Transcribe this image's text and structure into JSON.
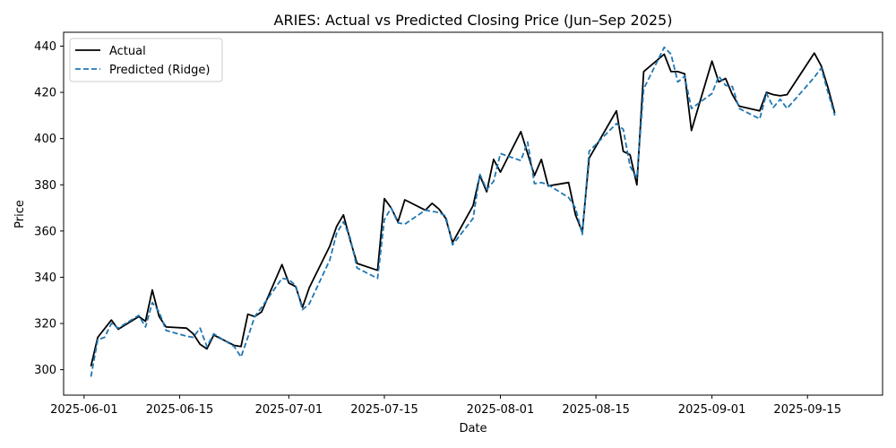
{
  "chart_data": {
    "type": "line",
    "title": "ARIES: Actual vs Predicted Closing Price (Jun–Sep 2025)",
    "xlabel": "Date",
    "ylabel": "Price",
    "xlim": [
      "2025-05-29",
      "2025-09-26"
    ],
    "ylim": [
      289,
      446
    ],
    "x_ticks": [
      "2025-06-01",
      "2025-06-15",
      "2025-07-01",
      "2025-07-15",
      "2025-08-01",
      "2025-08-15",
      "2025-09-01",
      "2025-09-15"
    ],
    "y_ticks": [
      300,
      320,
      340,
      360,
      380,
      400,
      420,
      440
    ],
    "grid": false,
    "legend_position": "top-left",
    "colors": {
      "actual": "#000000",
      "predicted": "#1f77b4"
    },
    "series": [
      {
        "name": "Actual",
        "style": "solid",
        "points": [
          [
            "2025-06-02",
            301.5
          ],
          [
            "2025-06-03",
            314
          ],
          [
            "2025-06-05",
            321.5
          ],
          [
            "2025-06-06",
            317.5
          ],
          [
            "2025-06-09",
            323
          ],
          [
            "2025-06-10",
            321
          ],
          [
            "2025-06-11",
            334.5
          ],
          [
            "2025-06-12",
            323
          ],
          [
            "2025-06-13",
            318.5
          ],
          [
            "2025-06-16",
            318
          ],
          [
            "2025-06-17",
            315.5
          ],
          [
            "2025-06-18",
            311
          ],
          [
            "2025-06-19",
            309
          ],
          [
            "2025-06-20",
            315
          ],
          [
            "2025-06-23",
            310.5
          ],
          [
            "2025-06-24",
            310
          ],
          [
            "2025-06-25",
            324
          ],
          [
            "2025-06-26",
            323
          ],
          [
            "2025-06-27",
            325
          ],
          [
            "2025-06-30",
            345.5
          ],
          [
            "2025-07-01",
            337.5
          ],
          [
            "2025-07-02",
            336
          ],
          [
            "2025-07-03",
            327
          ],
          [
            "2025-07-04",
            335.5
          ],
          [
            "2025-07-07",
            353.5
          ],
          [
            "2025-07-08",
            362
          ],
          [
            "2025-07-09",
            367
          ],
          [
            "2025-07-10",
            356
          ],
          [
            "2025-07-11",
            346
          ],
          [
            "2025-07-14",
            343
          ],
          [
            "2025-07-15",
            374
          ],
          [
            "2025-07-16",
            370
          ],
          [
            "2025-07-17",
            364
          ],
          [
            "2025-07-18",
            373.5
          ],
          [
            "2025-07-21",
            369
          ],
          [
            "2025-07-22",
            372
          ],
          [
            "2025-07-23",
            369.5
          ],
          [
            "2025-07-24",
            365.5
          ],
          [
            "2025-07-25",
            355
          ],
          [
            "2025-07-28",
            371
          ],
          [
            "2025-07-29",
            384
          ],
          [
            "2025-07-30",
            377
          ],
          [
            "2025-07-31",
            391
          ],
          [
            "2025-08-01",
            385.5
          ],
          [
            "2025-08-04",
            403
          ],
          [
            "2025-08-05",
            393.5
          ],
          [
            "2025-08-06",
            384
          ],
          [
            "2025-08-07",
            391
          ],
          [
            "2025-08-08",
            379.5
          ],
          [
            "2025-08-11",
            381
          ],
          [
            "2025-08-12",
            367
          ],
          [
            "2025-08-13",
            359.5
          ],
          [
            "2025-08-14",
            391.5
          ],
          [
            "2025-08-18",
            412
          ],
          [
            "2025-08-19",
            394.5
          ],
          [
            "2025-08-20",
            393
          ],
          [
            "2025-08-21",
            380
          ],
          [
            "2025-08-22",
            429
          ],
          [
            "2025-08-25",
            436.5
          ],
          [
            "2025-08-26",
            429
          ],
          [
            "2025-08-27",
            429
          ],
          [
            "2025-08-28",
            428
          ],
          [
            "2025-08-29",
            403.5
          ],
          [
            "2025-09-01",
            433.5
          ],
          [
            "2025-09-02",
            424.5
          ],
          [
            "2025-09-03",
            426
          ],
          [
            "2025-09-04",
            419
          ],
          [
            "2025-09-05",
            414
          ],
          [
            "2025-09-08",
            412
          ],
          [
            "2025-09-09",
            420
          ],
          [
            "2025-09-10",
            419
          ],
          [
            "2025-09-11",
            418.5
          ],
          [
            "2025-09-12",
            419
          ],
          [
            "2025-09-16",
            437
          ],
          [
            "2025-09-17",
            431.5
          ],
          [
            "2025-09-18",
            422
          ],
          [
            "2025-09-19",
            411
          ]
        ]
      },
      {
        "name": "Predicted (Ridge)",
        "style": "dashed",
        "points": [
          [
            "2025-06-02",
            297
          ],
          [
            "2025-06-03",
            313
          ],
          [
            "2025-06-04",
            314
          ],
          [
            "2025-06-05",
            320
          ],
          [
            "2025-06-06",
            318
          ],
          [
            "2025-06-09",
            323.5
          ],
          [
            "2025-06-10",
            318.5
          ],
          [
            "2025-06-11",
            329
          ],
          [
            "2025-06-12",
            325
          ],
          [
            "2025-06-13",
            317
          ],
          [
            "2025-06-16",
            314.5
          ],
          [
            "2025-06-17",
            314
          ],
          [
            "2025-06-18",
            318
          ],
          [
            "2025-06-19",
            310
          ],
          [
            "2025-06-20",
            315.5
          ],
          [
            "2025-06-23",
            310
          ],
          [
            "2025-06-24",
            305.5
          ],
          [
            "2025-06-25",
            314
          ],
          [
            "2025-06-26",
            323
          ],
          [
            "2025-06-27",
            327
          ],
          [
            "2025-06-30",
            339.5
          ],
          [
            "2025-07-01",
            339
          ],
          [
            "2025-07-02",
            336.5
          ],
          [
            "2025-07-03",
            326
          ],
          [
            "2025-07-04",
            328.5
          ],
          [
            "2025-07-07",
            347.5
          ],
          [
            "2025-07-08",
            359
          ],
          [
            "2025-07-09",
            364
          ],
          [
            "2025-07-10",
            357
          ],
          [
            "2025-07-11",
            344
          ],
          [
            "2025-07-14",
            339.5
          ],
          [
            "2025-07-15",
            365
          ],
          [
            "2025-07-16",
            370
          ],
          [
            "2025-07-17",
            363.5
          ],
          [
            "2025-07-18",
            363
          ],
          [
            "2025-07-21",
            369
          ],
          [
            "2025-07-22",
            368.5
          ],
          [
            "2025-07-23",
            368
          ],
          [
            "2025-07-24",
            366.5
          ],
          [
            "2025-07-25",
            354
          ],
          [
            "2025-07-28",
            365.5
          ],
          [
            "2025-07-29",
            384.5
          ],
          [
            "2025-07-30",
            378
          ],
          [
            "2025-07-31",
            381.5
          ],
          [
            "2025-08-01",
            393.5
          ],
          [
            "2025-08-04",
            390.5
          ],
          [
            "2025-08-05",
            398.5
          ],
          [
            "2025-08-06",
            380.5
          ],
          [
            "2025-08-07",
            381
          ],
          [
            "2025-08-08",
            380
          ],
          [
            "2025-08-11",
            374.5
          ],
          [
            "2025-08-12",
            370
          ],
          [
            "2025-08-13",
            358.5
          ],
          [
            "2025-08-14",
            394.5
          ],
          [
            "2025-08-18",
            406.5
          ],
          [
            "2025-08-19",
            404
          ],
          [
            "2025-08-20",
            388
          ],
          [
            "2025-08-21",
            383
          ],
          [
            "2025-08-22",
            421.5
          ],
          [
            "2025-08-25",
            439.5
          ],
          [
            "2025-08-26",
            436.5
          ],
          [
            "2025-08-27",
            424.5
          ],
          [
            "2025-08-28",
            427
          ],
          [
            "2025-08-29",
            413
          ],
          [
            "2025-09-01",
            419.5
          ],
          [
            "2025-09-02",
            427
          ],
          [
            "2025-09-03",
            423
          ],
          [
            "2025-09-04",
            422.5
          ],
          [
            "2025-09-05",
            413
          ],
          [
            "2025-09-08",
            408.5
          ],
          [
            "2025-09-09",
            419.5
          ],
          [
            "2025-09-10",
            413.5
          ],
          [
            "2025-09-11",
            417
          ],
          [
            "2025-09-12",
            413
          ],
          [
            "2025-09-16",
            426.5
          ],
          [
            "2025-09-17",
            430.5
          ],
          [
            "2025-09-18",
            420
          ],
          [
            "2025-09-19",
            410
          ]
        ]
      }
    ]
  }
}
